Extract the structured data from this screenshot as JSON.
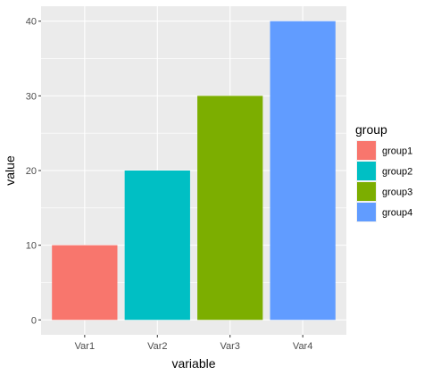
{
  "chart_data": {
    "type": "bar",
    "categories": [
      "Var1",
      "Var2",
      "Var3",
      "Var4"
    ],
    "values": [
      10,
      20,
      30,
      40
    ],
    "groups": [
      "group1",
      "group2",
      "group3",
      "group4"
    ],
    "colors": [
      "#F8766D",
      "#00BFC4",
      "#7CAE00",
      "#619CFF"
    ],
    "xlabel": "variable",
    "ylabel": "value",
    "ylim": [
      -2,
      42
    ],
    "yticks": [
      0,
      10,
      20,
      30,
      40
    ],
    "legend": {
      "title": "group",
      "entries": [
        "group1",
        "group2",
        "group3",
        "group4"
      ],
      "placement": "right"
    },
    "grid": true,
    "panel_background": "#EBEBEB"
  }
}
